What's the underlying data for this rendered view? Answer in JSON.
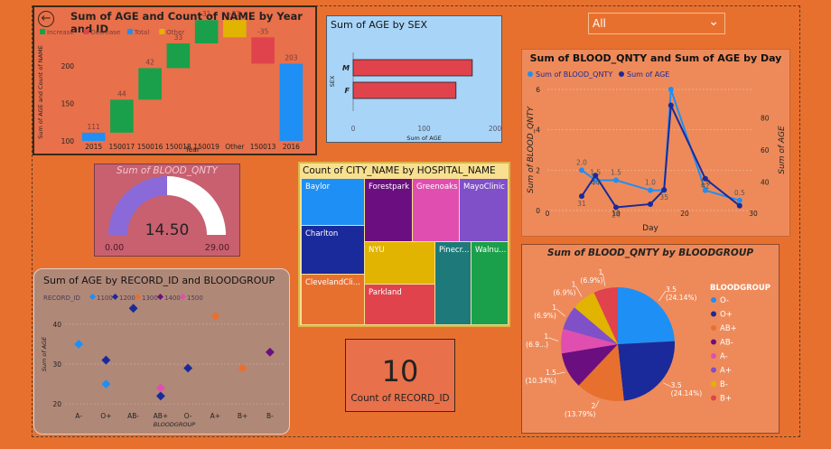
{
  "slicer": {
    "value": "All"
  },
  "card": {
    "value": "10",
    "label": "Count of RECORD_ID"
  },
  "charts": [
    {
      "type": "waterfall",
      "title": "Sum of AGE and Count of NAME by Year and ID",
      "xlabel": "Year",
      "ylabel": "Sum of AGE and Count of NAME",
      "legend": [
        "Increase",
        "Decrease",
        "Total",
        "Other"
      ],
      "legend_colors": [
        "#1aa04a",
        "#e0434c",
        "#1e8ff5",
        "#e0b400"
      ],
      "yticks": [
        "100",
        "150",
        "200"
      ],
      "ylim": [
        100,
        230
      ],
      "categories": [
        "2015",
        "150017",
        "150016",
        "150018",
        "150019",
        "Other",
        "150013",
        "2016"
      ],
      "kinds": [
        "total",
        "increase",
        "increase",
        "increase",
        "increase",
        "other",
        "decrease",
        "total"
      ],
      "labels": [
        "111",
        "44",
        "42",
        "33",
        "31",
        "-23",
        "-35",
        "203"
      ],
      "starts": [
        100,
        111,
        155,
        197,
        230,
        261,
        238,
        100
      ],
      "ends": [
        111,
        155,
        197,
        230,
        261,
        238,
        203,
        203
      ]
    },
    {
      "type": "bar",
      "orientation": "horizontal",
      "title": "Sum of AGE by SEX",
      "xlabel": "Sum of AGE",
      "ylabel": "SEX",
      "categories": [
        "M",
        "F"
      ],
      "values": [
        168,
        145
      ],
      "xticks": [
        "0",
        "100",
        "200"
      ],
      "xlim": [
        0,
        200
      ],
      "color": "#e0434c"
    },
    {
      "type": "line",
      "title": "Sum of BLOOD_QNTY and Sum of AGE by Day",
      "xlabel": "Day",
      "ylabel": "Sum of BLOOD_QNTY",
      "y2label": "Sum of AGE",
      "xticks": [
        "0",
        "10",
        "20",
        "30"
      ],
      "xlim": [
        0,
        30
      ],
      "yticks": [
        "0",
        "2",
        "4",
        "6"
      ],
      "ylim": [
        0,
        6
      ],
      "y2ticks": [
        "40",
        "60",
        "80"
      ],
      "y2lim": [
        22,
        98
      ],
      "x": [
        5,
        7,
        10,
        15,
        17,
        18,
        23,
        28
      ],
      "series": [
        {
          "name": "Sum of BLOOD_QNTY",
          "color": "#1e8ff5",
          "values": [
            2.0,
            1.5,
            1.5,
            1.0,
            1.0,
            6.0,
            1.0,
            0.5
          ],
          "labels": [
            "2.0",
            "1.5",
            "1.5",
            "1.0",
            "",
            "",
            "1.0",
            "0.5"
          ]
        },
        {
          "name": "Sum of AGE",
          "color": "#1a2a9a",
          "values": [
            31,
            44,
            24,
            26,
            35,
            88,
            42,
            25
          ],
          "labels": [
            "31",
            "44",
            "24",
            "",
            "35",
            "",
            "42",
            ""
          ]
        }
      ]
    },
    {
      "type": "gauge",
      "title": "Sum of BLOOD_QNTY",
      "value": 14.5,
      "value_label": "14.50",
      "min_label": "0.00",
      "max_label": "29.00",
      "min": 0,
      "max": 29
    },
    {
      "type": "treemap",
      "title": "Count of CITY_NAME by HOSPITAL_NAME",
      "items": [
        {
          "name": "Baylor",
          "color": "#1e8ff5"
        },
        {
          "name": "Forestpark",
          "color": "#6b0f80"
        },
        {
          "name": "Greenoaks",
          "color": "#e04fb0"
        },
        {
          "name": "MayoClinic",
          "color": "#8050c8"
        },
        {
          "name": "Charlton",
          "color": "#1a2a9a"
        },
        {
          "name": "NYU",
          "color": "#e0b400"
        },
        {
          "name": "Pinecr...",
          "color": "#1e7a7a"
        },
        {
          "name": "Walnu...",
          "color": "#1aa04a"
        },
        {
          "name": "ClevelandCli...",
          "color": "#e8702f"
        },
        {
          "name": "Parkland",
          "color": "#e0434c"
        }
      ]
    },
    {
      "type": "scatter",
      "title": "Sum of AGE by RECORD_ID and BLOODGROUP",
      "legend_title": "RECORD_ID",
      "xlabel": "BLOODGROUP",
      "ylabel": "Sum of AGE",
      "categories": [
        "A-",
        "O+",
        "AB-",
        "AB+",
        "O-",
        "A+",
        "B+",
        "B-"
      ],
      "yticks": [
        "20",
        "30",
        "40"
      ],
      "ylim": [
        18,
        47
      ],
      "series": [
        {
          "name": "1100",
          "color": "#1e8ff5",
          "points": [
            [
              "A-",
              35
            ],
            [
              "O+",
              25
            ]
          ]
        },
        {
          "name": "1200",
          "color": "#1a2a9a",
          "points": [
            [
              "O+",
              31
            ],
            [
              "AB-",
              44
            ],
            [
              "AB+",
              22
            ],
            [
              "O-",
              29
            ]
          ]
        },
        {
          "name": "1300",
          "color": "#e8702f",
          "points": [
            [
              "A+",
              42
            ],
            [
              "B+",
              29
            ]
          ]
        },
        {
          "name": "1400",
          "color": "#6b0f80",
          "points": [
            [
              "B-",
              33
            ]
          ]
        },
        {
          "name": "1500",
          "color": "#e04fb0",
          "points": [
            [
              "AB+",
              24
            ]
          ]
        }
      ]
    },
    {
      "type": "pie",
      "title": "Sum of BLOOD_QNTY by BLOODGROUP",
      "legend_title": "BLOODGROUP",
      "slices": [
        {
          "name": "O-",
          "value": 3.5,
          "color": "#1e8ff5",
          "label": "3.5",
          "pct": "(24.14%)"
        },
        {
          "name": "O+",
          "value": 3.5,
          "color": "#1a2a9a",
          "label": "3.5",
          "pct": "(24.14%)"
        },
        {
          "name": "AB+",
          "value": 2,
          "color": "#e8702f",
          "label": "2",
          "pct": "(13.79%)"
        },
        {
          "name": "AB-",
          "value": 1.5,
          "color": "#6b0f80",
          "label": "1.5",
          "pct": "(10.34%)"
        },
        {
          "name": "A-",
          "value": 1,
          "color": "#e04fb0",
          "label": "1",
          "pct": "(6.9...)"
        },
        {
          "name": "A+",
          "value": 1,
          "color": "#8050c8",
          "label": "1",
          "pct": "(6.9%)"
        },
        {
          "name": "B-",
          "value": 1,
          "color": "#e0b400",
          "label": "1",
          "pct": "(6.9%)"
        },
        {
          "name": "B+",
          "value": 1,
          "color": "#e0434c",
          "label": "1",
          "pct": "(6.9%)"
        }
      ]
    }
  ]
}
